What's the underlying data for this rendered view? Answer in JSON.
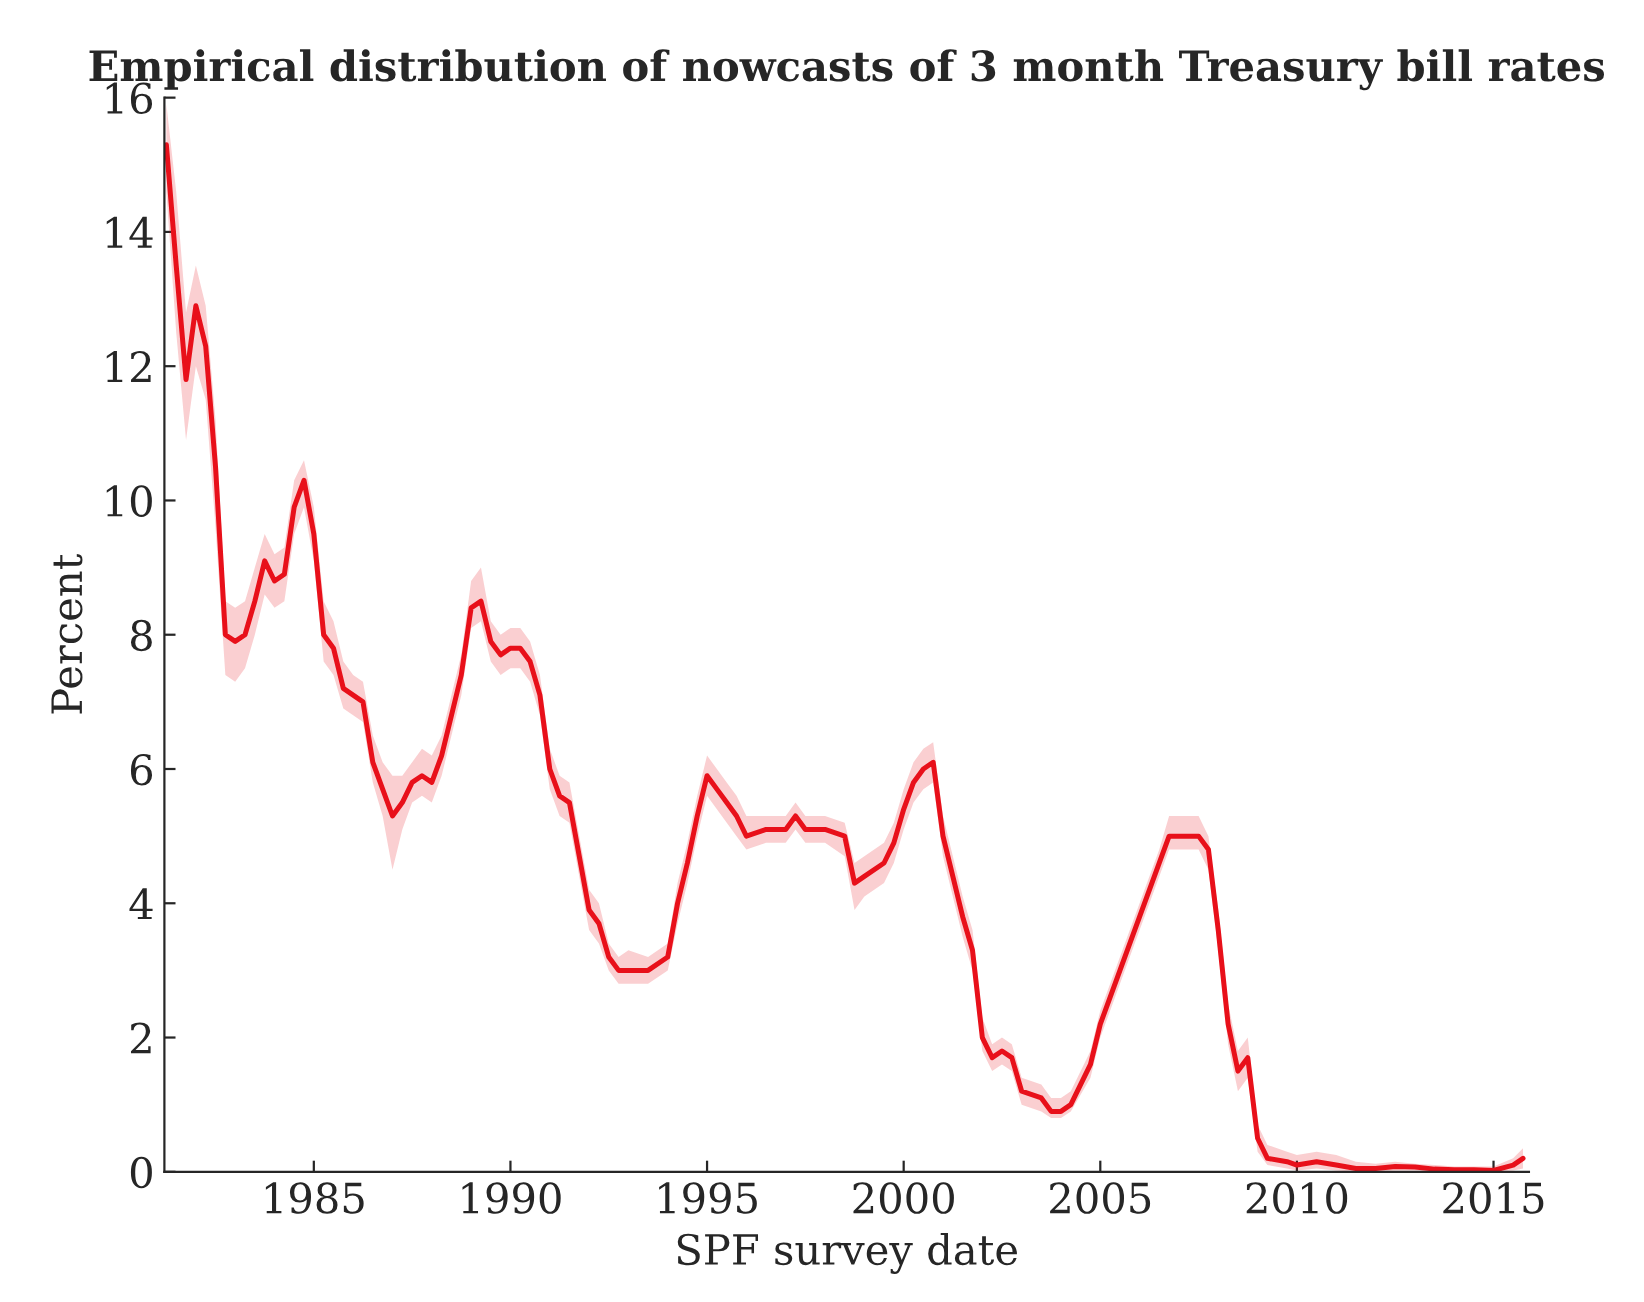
{
  "chart_data": {
    "type": "line",
    "title": "Empirical distribution of nowcasts of 3 month Treasury bill rates",
    "xlabel": "SPF survey date",
    "ylabel": "Percent",
    "xlim": [
      1981.2,
      2015.9
    ],
    "xticks": [
      1985,
      1990,
      1995,
      2000,
      2005,
      2010,
      2015
    ],
    "ylim": [
      0,
      16
    ],
    "yticks": [
      0,
      2,
      4,
      6,
      8,
      10,
      12,
      14,
      16
    ],
    "grid": false,
    "marker": "none",
    "line_style": "solid",
    "series": [
      {
        "color": "#e8101a",
        "x": [
          1981.25,
          1981.5,
          1981.75,
          1982.0,
          1982.25,
          1982.5,
          1982.75,
          1983.0,
          1983.25,
          1983.5,
          1983.75,
          1984.0,
          1984.25,
          1984.5,
          1984.75,
          1985.0,
          1985.25,
          1985.5,
          1985.75,
          1986.0,
          1986.25,
          1986.5,
          1986.75,
          1987.0,
          1987.25,
          1987.5,
          1987.75,
          1988.0,
          1988.25,
          1988.5,
          1988.75,
          1989.0,
          1989.25,
          1989.5,
          1989.75,
          1990.0,
          1990.25,
          1990.5,
          1990.75,
          1991.0,
          1991.25,
          1991.5,
          1991.75,
          1992.0,
          1992.25,
          1992.5,
          1992.75,
          1993.0,
          1993.5,
          1994.0,
          1994.25,
          1994.5,
          1994.75,
          1995.0,
          1995.25,
          1995.5,
          1995.75,
          1996.0,
          1996.5,
          1997.0,
          1997.25,
          1997.5,
          1998.0,
          1998.5,
          1998.75,
          1999.0,
          1999.5,
          1999.75,
          2000.0,
          2000.25,
          2000.5,
          2000.75,
          2001.0,
          2001.5,
          2001.75,
          2002.0,
          2002.25,
          2002.5,
          2002.75,
          2003.0,
          2003.5,
          2003.75,
          2004.0,
          2004.25,
          2004.75,
          2005.0,
          2005.5,
          2006.0,
          2006.5,
          2006.75,
          2007.0,
          2007.5,
          2007.75,
          2008.0,
          2008.25,
          2008.5,
          2008.75,
          2009.0,
          2009.25,
          2009.75,
          2010.0,
          2010.5,
          2011.0,
          2011.5,
          2012.0,
          2012.5,
          2013.0,
          2013.5,
          2014.0,
          2014.5,
          2015.0,
          2015.5,
          2015.75
        ],
        "values": [
          15.3,
          13.5,
          11.8,
          12.9,
          12.3,
          10.5,
          8.0,
          7.9,
          8.0,
          8.5,
          9.1,
          8.8,
          8.9,
          9.9,
          10.3,
          9.5,
          8.0,
          7.8,
          7.2,
          7.1,
          7.0,
          6.1,
          5.7,
          5.3,
          5.5,
          5.8,
          5.9,
          5.8,
          6.2,
          6.8,
          7.4,
          8.4,
          8.5,
          7.9,
          7.7,
          7.8,
          7.8,
          7.6,
          7.1,
          6.0,
          5.6,
          5.5,
          4.7,
          3.9,
          3.7,
          3.2,
          3.0,
          3.0,
          3.0,
          3.2,
          4.0,
          4.6,
          5.3,
          5.9,
          5.7,
          5.5,
          5.3,
          5.0,
          5.1,
          5.1,
          5.3,
          5.1,
          5.1,
          5.0,
          4.3,
          4.4,
          4.6,
          4.9,
          5.4,
          5.8,
          6.0,
          6.1,
          5.0,
          3.8,
          3.3,
          2.0,
          1.7,
          1.8,
          1.7,
          1.2,
          1.1,
          0.9,
          0.9,
          1.0,
          1.6,
          2.2,
          3.0,
          3.8,
          4.6,
          5.0,
          5.0,
          5.0,
          4.8,
          3.6,
          2.2,
          1.5,
          1.7,
          0.5,
          0.2,
          0.15,
          0.1,
          0.15,
          0.1,
          0.05,
          0.05,
          0.08,
          0.07,
          0.04,
          0.03,
          0.03,
          0.02,
          0.1,
          0.2
        ],
        "lower": [
          14.6,
          12.5,
          10.9,
          12.0,
          11.5,
          9.6,
          7.4,
          7.3,
          7.5,
          8.0,
          8.6,
          8.4,
          8.5,
          9.5,
          9.9,
          9.1,
          7.6,
          7.4,
          6.9,
          6.8,
          6.7,
          5.8,
          5.3,
          4.5,
          5.1,
          5.5,
          5.6,
          5.5,
          5.9,
          6.5,
          7.1,
          8.1,
          8.2,
          7.6,
          7.4,
          7.5,
          7.5,
          7.3,
          6.8,
          5.7,
          5.3,
          5.2,
          4.4,
          3.6,
          3.4,
          3.0,
          2.8,
          2.8,
          2.8,
          3.0,
          3.7,
          4.3,
          5.0,
          5.6,
          5.4,
          5.2,
          5.0,
          4.8,
          4.9,
          4.9,
          5.1,
          4.9,
          4.9,
          4.7,
          3.9,
          4.1,
          4.3,
          4.6,
          5.1,
          5.5,
          5.7,
          5.8,
          4.7,
          3.5,
          3.0,
          1.8,
          1.5,
          1.6,
          1.5,
          1.0,
          0.9,
          0.8,
          0.8,
          0.9,
          1.4,
          2.0,
          2.8,
          3.6,
          4.4,
          4.8,
          4.8,
          4.8,
          4.5,
          3.3,
          1.9,
          1.2,
          1.4,
          0.3,
          0.1,
          0.05,
          0.02,
          0.05,
          0.02,
          0.0,
          0.0,
          0.02,
          0.02,
          0.0,
          0.0,
          0.0,
          0.0,
          0.02,
          0.05
        ],
        "upper": [
          15.9,
          14.6,
          12.8,
          13.5,
          12.9,
          11.2,
          8.5,
          8.4,
          8.5,
          9.0,
          9.5,
          9.2,
          9.3,
          10.3,
          10.6,
          9.9,
          8.5,
          8.2,
          7.6,
          7.4,
          7.3,
          6.5,
          6.1,
          5.9,
          5.9,
          6.1,
          6.3,
          6.2,
          6.5,
          7.1,
          7.7,
          8.8,
          9.0,
          8.2,
          8.0,
          8.1,
          8.1,
          7.9,
          7.4,
          6.3,
          5.9,
          5.8,
          5.0,
          4.2,
          4.0,
          3.4,
          3.2,
          3.3,
          3.2,
          3.4,
          4.3,
          4.9,
          5.6,
          6.2,
          6.0,
          5.8,
          5.6,
          5.3,
          5.3,
          5.3,
          5.5,
          5.3,
          5.3,
          5.2,
          4.6,
          4.7,
          4.9,
          5.2,
          5.7,
          6.1,
          6.3,
          6.4,
          5.3,
          4.1,
          3.6,
          2.3,
          1.9,
          2.0,
          1.9,
          1.4,
          1.3,
          1.1,
          1.1,
          1.2,
          1.8,
          2.4,
          3.2,
          4.0,
          4.8,
          5.3,
          5.3,
          5.3,
          5.0,
          3.9,
          2.5,
          1.8,
          2.0,
          0.7,
          0.4,
          0.3,
          0.25,
          0.3,
          0.25,
          0.15,
          0.12,
          0.15,
          0.12,
          0.1,
          0.08,
          0.08,
          0.08,
          0.2,
          0.35
        ]
      }
    ]
  }
}
